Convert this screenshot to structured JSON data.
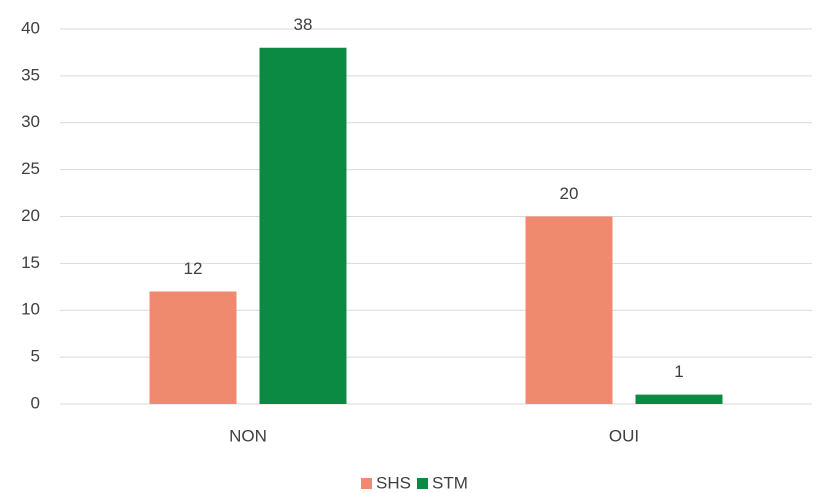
{
  "chart_data": {
    "type": "bar",
    "categories": [
      "NON",
      "OUI"
    ],
    "series": [
      {
        "name": "SHS",
        "color": "#f08a6e",
        "values": [
          12,
          20
        ]
      },
      {
        "name": "STM",
        "color": "#0a8a43",
        "values": [
          38,
          1
        ]
      }
    ],
    "ylim": [
      0,
      40
    ],
    "yticks": [
      0,
      5,
      10,
      15,
      20,
      25,
      30,
      35,
      40
    ],
    "grid": true,
    "legend": "bottom"
  }
}
